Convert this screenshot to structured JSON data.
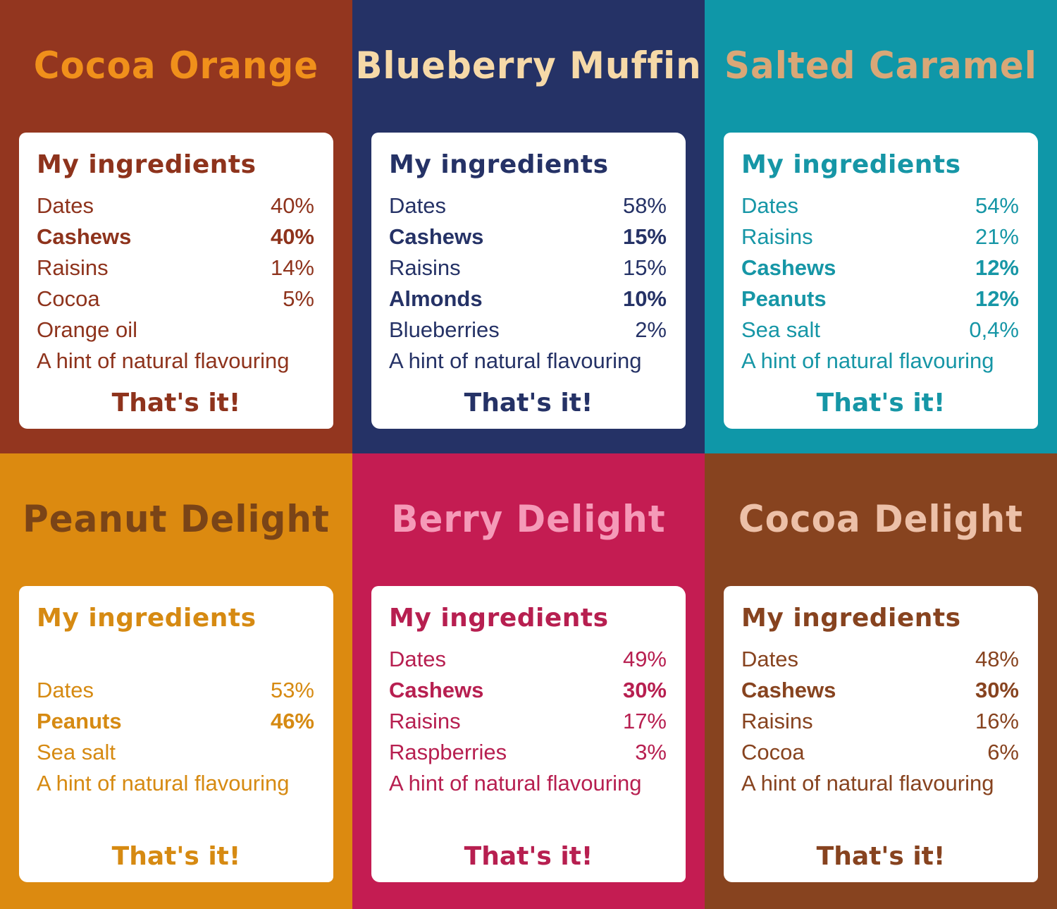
{
  "heading": "My ingredients",
  "outro": "That's it!",
  "panels": [
    {
      "title": "Cocoa Orange",
      "bg": "#93361f",
      "title_color": "#f0901b",
      "text_color": "#8e331c",
      "gap": false,
      "ingredients": [
        {
          "name": "Dates",
          "pct": "40%",
          "bold": false
        },
        {
          "name": "Cashews",
          "pct": "40%",
          "bold": true
        },
        {
          "name": "Raisins",
          "pct": "14%",
          "bold": false
        },
        {
          "name": "Cocoa",
          "pct": "5%",
          "bold": false
        },
        {
          "name": "Orange oil",
          "pct": "",
          "bold": false
        },
        {
          "name": "A hint of natural flavouring",
          "pct": "",
          "bold": false
        }
      ]
    },
    {
      "title": "Blueberry Muffin",
      "bg": "#253266",
      "title_color": "#f6d9a8",
      "text_color": "#253266",
      "gap": false,
      "ingredients": [
        {
          "name": "Dates",
          "pct": "58%",
          "bold": false
        },
        {
          "name": "Cashews",
          "pct": "15%",
          "bold": true
        },
        {
          "name": "Raisins",
          "pct": "15%",
          "bold": false
        },
        {
          "name": "Almonds",
          "pct": "10%",
          "bold": true
        },
        {
          "name": "Blueberries",
          "pct": "2%",
          "bold": false
        },
        {
          "name": "A hint of natural flavouring",
          "pct": "",
          "bold": false
        }
      ]
    },
    {
      "title": "Salted Caramel",
      "bg": "#0f97a8",
      "title_color": "#d9a777",
      "text_color": "#1696a6",
      "gap": false,
      "ingredients": [
        {
          "name": "Dates",
          "pct": "54%",
          "bold": false
        },
        {
          "name": "Raisins",
          "pct": "21%",
          "bold": false
        },
        {
          "name": "Cashews",
          "pct": "12%",
          "bold": true
        },
        {
          "name": "Peanuts",
          "pct": "12%",
          "bold": true
        },
        {
          "name": "Sea salt",
          "pct": "0,4%",
          "bold": false
        },
        {
          "name": "A hint of natural flavouring",
          "pct": "",
          "bold": false
        }
      ]
    },
    {
      "title": "Peanut Delight",
      "bg": "#dc8a10",
      "title_color": "#7a4417",
      "text_color": "#d68a12",
      "gap": true,
      "ingredients": [
        {
          "name": "Dates",
          "pct": "53%",
          "bold": false
        },
        {
          "name": "Peanuts",
          "pct": "46%",
          "bold": true
        },
        {
          "name": "Sea salt",
          "pct": "",
          "bold": false
        },
        {
          "name": "A hint of natural flavouring",
          "pct": "",
          "bold": false
        }
      ]
    },
    {
      "title": "Berry Delight",
      "bg": "#c41c52",
      "title_color": "#f59ab8",
      "text_color": "#b71f50",
      "gap": false,
      "ingredients": [
        {
          "name": "Dates",
          "pct": "49%",
          "bold": false
        },
        {
          "name": "Cashews",
          "pct": "30%",
          "bold": true
        },
        {
          "name": "Raisins",
          "pct": "17%",
          "bold": false
        },
        {
          "name": "Raspberries",
          "pct": "3%",
          "bold": false
        },
        {
          "name": "A hint of natural flavouring",
          "pct": "",
          "bold": false
        }
      ]
    },
    {
      "title": "Cocoa Delight",
      "bg": "#87431f",
      "title_color": "#ecc0a8",
      "text_color": "#87431f",
      "gap": false,
      "ingredients": [
        {
          "name": "Dates",
          "pct": "48%",
          "bold": false
        },
        {
          "name": "Cashews",
          "pct": "30%",
          "bold": true
        },
        {
          "name": "Raisins",
          "pct": "16%",
          "bold": false
        },
        {
          "name": "Cocoa",
          "pct": "6%",
          "bold": false
        },
        {
          "name": "A hint of natural flavouring",
          "pct": "",
          "bold": false
        }
      ]
    }
  ]
}
